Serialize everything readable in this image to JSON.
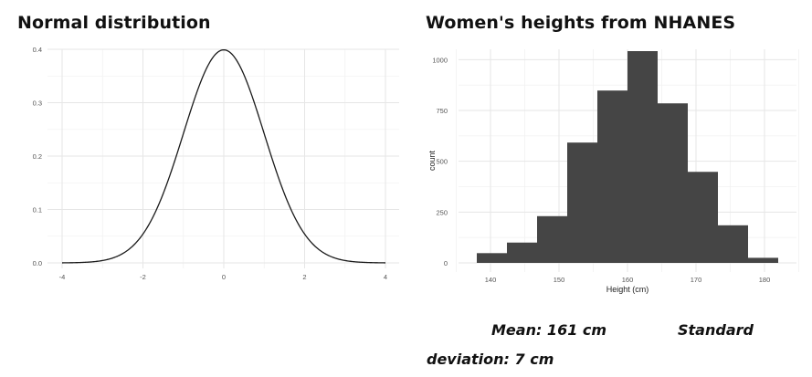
{
  "charts": {
    "left_title": "Normal distribution",
    "right_title": "Women's heights from NHANES"
  },
  "stats": {
    "mean": "Mean: 161 cm",
    "sd_line1": "Standard",
    "sd_line2": "deviation: 7 cm"
  },
  "chart_data": [
    {
      "type": "line",
      "title": "Normal distribution",
      "function": "standard normal density",
      "mean": 0,
      "sd": 1,
      "xlim": [
        -4,
        4
      ],
      "ylim": [
        0,
        0.4
      ],
      "xticks": [
        "-4",
        "-2",
        "0",
        "2",
        "4"
      ],
      "yticks": [
        "0.0",
        "0.1",
        "0.2",
        "0.3",
        "0.4"
      ],
      "xlabel": "",
      "ylabel": "",
      "grid": true,
      "line_color": "#1a1a1a"
    },
    {
      "type": "bar",
      "title": "Women's heights from NHANES",
      "xlabel": "Height (cm)",
      "ylabel": "count",
      "bin_edges": [
        138,
        142.4,
        146.8,
        151.2,
        155.6,
        160,
        164.4,
        168.8,
        173.2,
        177.6,
        182
      ],
      "values": [
        48,
        100,
        230,
        592,
        848,
        1042,
        785,
        448,
        185,
        25
      ],
      "xlim": [
        138,
        182
      ],
      "ylim": [
        0,
        1042
      ],
      "xticks": [
        "140",
        "150",
        "160",
        "170",
        "180"
      ],
      "yticks": [
        "0",
        "250",
        "500",
        "750",
        "1000"
      ],
      "bar_color": "#454545",
      "grid": true
    }
  ]
}
